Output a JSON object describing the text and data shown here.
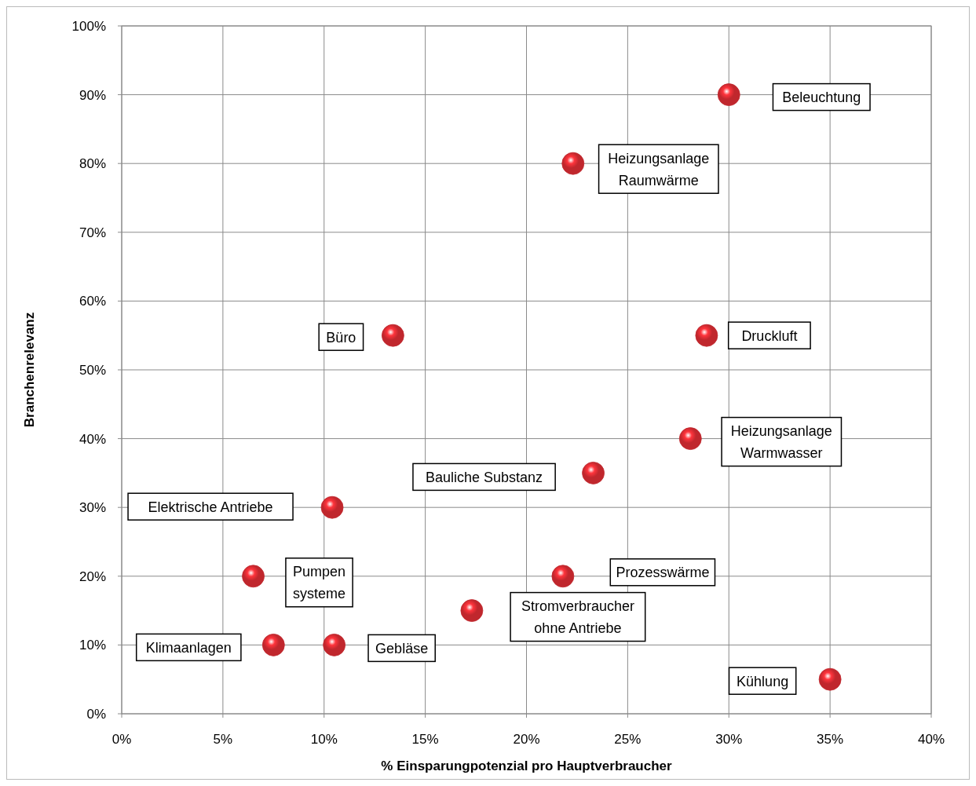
{
  "chart_data": {
    "type": "scatter",
    "xlabel": "% Einsparungpotenzial pro Hauptverbraucher",
    "ylabel": "Branchenrelevanz",
    "xlim": [
      0,
      40
    ],
    "xticks": [
      {
        "value": 0,
        "label": "0%"
      },
      {
        "value": 5,
        "label": "5%"
      },
      {
        "value": 10,
        "label": "10%"
      },
      {
        "value": 15,
        "label": "15%"
      },
      {
        "value": 20,
        "label": "20%"
      },
      {
        "value": 25,
        "label": "25%"
      },
      {
        "value": 30,
        "label": "30%"
      },
      {
        "value": 35,
        "label": "35%"
      },
      {
        "value": 40,
        "label": "40%"
      }
    ],
    "ylim": [
      0,
      100
    ],
    "yticks": [
      {
        "value": 0,
        "label": "0%"
      },
      {
        "value": 10,
        "label": "10%"
      },
      {
        "value": 20,
        "label": "20%"
      },
      {
        "value": 30,
        "label": "30%"
      },
      {
        "value": 40,
        "label": "40%"
      },
      {
        "value": 50,
        "label": "50%"
      },
      {
        "value": 60,
        "label": "60%"
      },
      {
        "value": 70,
        "label": "70%"
      },
      {
        "value": 80,
        "label": "80%"
      },
      {
        "value": 90,
        "label": "90%"
      },
      {
        "value": 100,
        "label": "100%"
      }
    ],
    "grid": true,
    "marker": "circle",
    "series": [
      {
        "color": "#c0272d",
        "x": [
          30,
          22.3,
          13.4,
          28.9,
          28.1,
          23.3,
          10.4,
          6.5,
          21.8,
          17.3,
          7.5,
          10.5,
          35
        ],
        "values": [
          90,
          80,
          55,
          55,
          40,
          35,
          30,
          20,
          20,
          15,
          10,
          10,
          5
        ]
      }
    ],
    "annotations": [
      "Beleuchtung",
      "Heizungsanlage\nRaumwärme",
      "Büro",
      "Druckluft",
      "Heizungsanlage\nWarmwasser",
      "Bauliche Substanz",
      "Elektrische Antriebe",
      "Pumpen\nsysteme",
      "Prozesswärme",
      "Stromverbraucher\nohne Antriebe",
      "Klimaanlagen",
      "Gebläse",
      "Kühlung"
    ]
  }
}
